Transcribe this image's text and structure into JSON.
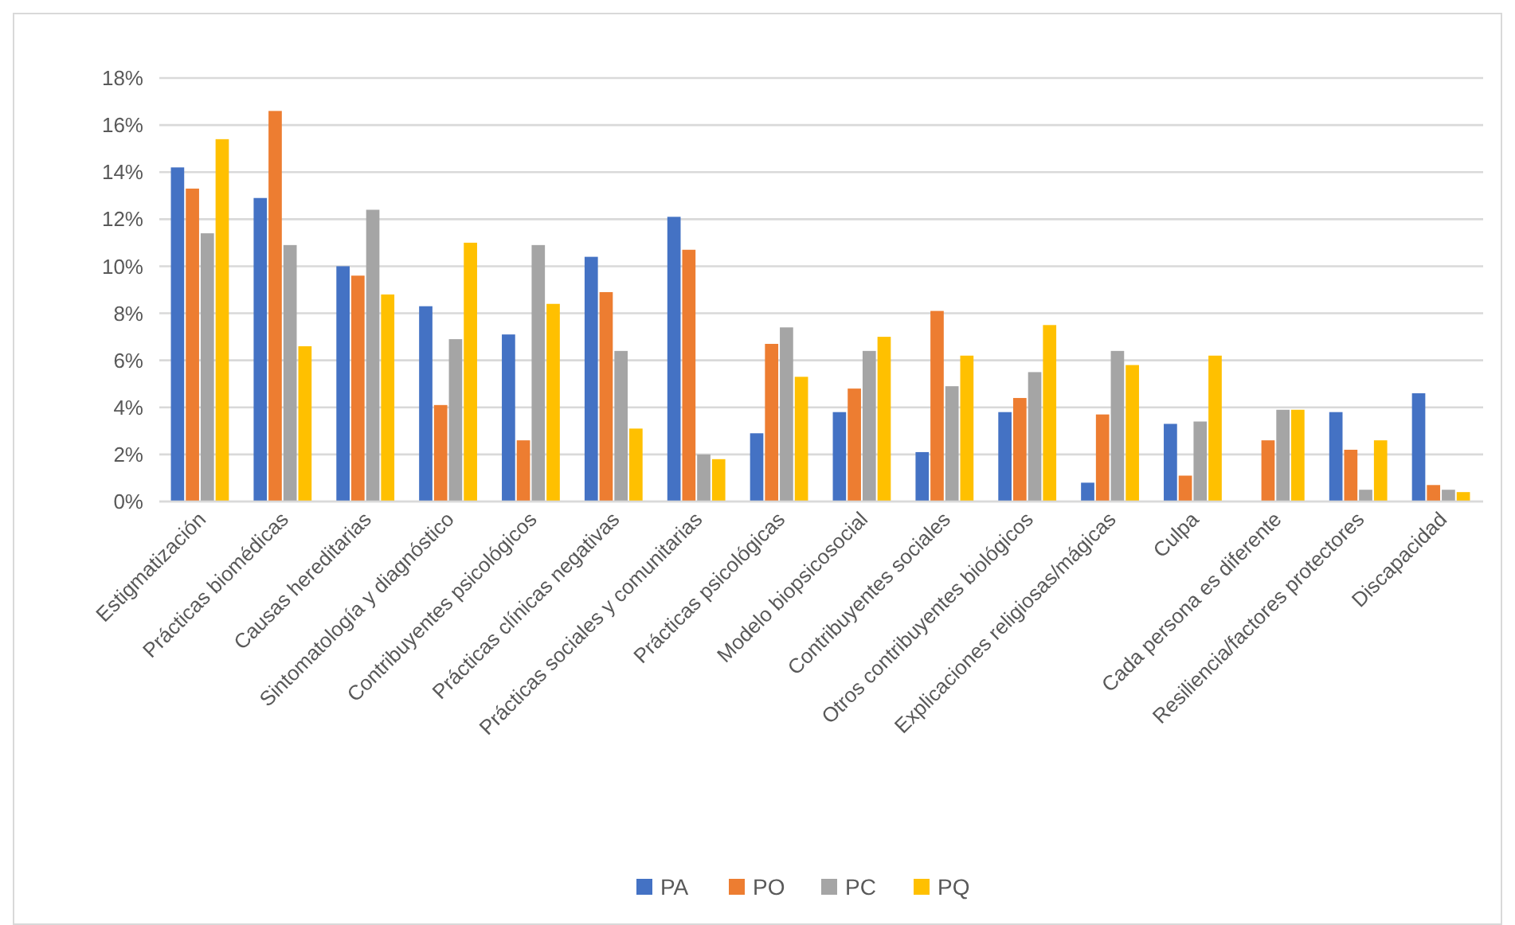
{
  "chart_data": {
    "type": "bar",
    "categories": [
      "Estigmatización",
      "Prácticas biomédicas",
      "Causas hereditarias",
      "Sintomatología y diagnóstico",
      "Contribuyentes psicológicos",
      "Prácticas clínicas negativas",
      "Prácticas sociales y comunitarias",
      "Prácticas psicológicas",
      "Modelo biopsicosocial",
      "Contribuyentes sociales",
      "Otros contribuyentes biológicos",
      "Explicaciones religiosas/mágicas",
      "Culpa",
      "Cada persona es diferente",
      "Resiliencia/factores protectores",
      "Discapacidad"
    ],
    "series": [
      {
        "name": "PA",
        "color": "#4472c4",
        "values": [
          14.2,
          12.9,
          10.0,
          8.3,
          7.1,
          10.4,
          12.1,
          2.9,
          3.8,
          2.1,
          3.8,
          0.8,
          3.3,
          0,
          3.8,
          4.6
        ]
      },
      {
        "name": "PO",
        "color": "#ed7d31",
        "values": [
          13.3,
          16.6,
          9.6,
          4.1,
          2.6,
          8.9,
          10.7,
          6.7,
          4.8,
          8.1,
          4.4,
          3.7,
          1.1,
          2.6,
          2.2,
          0.7
        ]
      },
      {
        "name": "PC",
        "color": "#a5a5a5",
        "values": [
          11.4,
          10.9,
          12.4,
          6.9,
          10.9,
          6.4,
          2.0,
          7.4,
          6.4,
          4.9,
          5.5,
          6.4,
          3.4,
          3.9,
          0.5,
          0.5
        ]
      },
      {
        "name": "PQ",
        "color": "#ffc000",
        "values": [
          15.4,
          6.6,
          8.8,
          11.0,
          8.4,
          3.1,
          1.8,
          5.3,
          7.0,
          6.2,
          7.5,
          5.8,
          6.2,
          3.9,
          2.6,
          0.4
        ]
      }
    ],
    "ylim": [
      0,
      18
    ],
    "yticks": [
      {
        "value": 0,
        "label": "0%"
      },
      {
        "value": 2,
        "label": "2%"
      },
      {
        "value": 4,
        "label": "4%"
      },
      {
        "value": 6,
        "label": "6%"
      },
      {
        "value": 8,
        "label": "8%"
      },
      {
        "value": 10,
        "label": "10%"
      },
      {
        "value": 12,
        "label": "12%"
      },
      {
        "value": 14,
        "label": "14%"
      },
      {
        "value": 16,
        "label": "16%"
      },
      {
        "value": 18,
        "label": "18%"
      }
    ],
    "grid": "y",
    "legend": "bottom"
  }
}
